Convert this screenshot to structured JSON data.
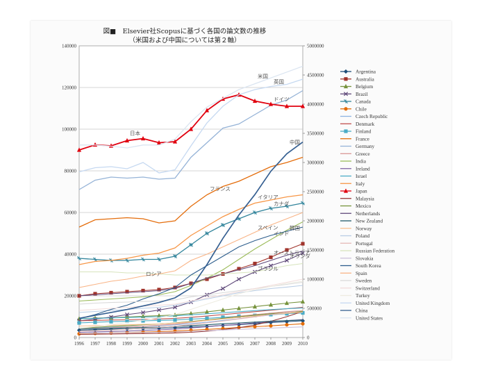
{
  "chart_data": {
    "type": "line",
    "title": "図■　Elsevier社Scopusに基づく各国の論文数の推移",
    "subtitle": "（米国および中国については第２軸）",
    "categories": [
      "1996",
      "1997",
      "1998",
      "1999",
      "2000",
      "2001",
      "2002",
      "2003",
      "2004",
      "2005",
      "2006",
      "2007",
      "2008",
      "2009",
      "2010"
    ],
    "y_left": {
      "min": 0,
      "max": 140000,
      "ticks": [
        "0",
        "20000",
        "40000",
        "60000",
        "80000",
        "100000",
        "120000",
        "140000"
      ]
    },
    "y_right": {
      "min": 0,
      "max": 5000000,
      "ticks": [
        "0",
        "500000",
        "1000000",
        "1500000",
        "2000000",
        "2500000",
        "3000000",
        "3500000",
        "4000000",
        "4500000",
        "5000000"
      ]
    },
    "series": [
      {
        "name": "Argentina",
        "color": "#1f4e79",
        "marker": "diamond",
        "axis": "left",
        "values": [
          3500,
          3700,
          3900,
          4100,
          4300,
          4500,
          4700,
          5000,
          5300,
          5800,
          6200,
          6700,
          7200,
          7600,
          8000
        ]
      },
      {
        "name": "Australia",
        "color": "#a0342c",
        "marker": "square",
        "axis": "left",
        "values": [
          20000,
          21000,
          21500,
          22000,
          22500,
          23000,
          24000,
          26000,
          28000,
          30500,
          33000,
          35500,
          38500,
          42000,
          45000
        ]
      },
      {
        "name": "Belgium",
        "color": "#76923c",
        "marker": "triangle",
        "axis": "left",
        "values": [
          9000,
          9300,
          9500,
          9800,
          10200,
          10500,
          10800,
          11500,
          12300,
          13200,
          14000,
          14800,
          15700,
          16500,
          17200
        ]
      },
      {
        "name": "Brazil",
        "color": "#5f497a",
        "marker": "x",
        "axis": "left",
        "values": [
          8000,
          8800,
          9800,
          11000,
          12000,
          13200,
          14500,
          17000,
          20500,
          23500,
          28000,
          31500,
          34500,
          37000,
          40500
        ]
      },
      {
        "name": "Canada",
        "color": "#31849b",
        "marker": "star",
        "axis": "left",
        "values": [
          38000,
          37500,
          37000,
          37000,
          37500,
          37500,
          39000,
          44500,
          50000,
          54000,
          57000,
          60000,
          62000,
          63000,
          64500
        ]
      },
      {
        "name": "Chile",
        "color": "#e36c09",
        "marker": "circle",
        "axis": "left",
        "values": [
          1800,
          2000,
          2200,
          2400,
          2600,
          2800,
          3100,
          3500,
          3900,
          4300,
          4800,
          5200,
          5600,
          6100,
          6600
        ]
      },
      {
        "name": "Czech Republic",
        "color": "#8db3e2",
        "marker": "none",
        "axis": "left",
        "values": [
          4500,
          4700,
          4900,
          5100,
          5400,
          5700,
          6100,
          6700,
          7300,
          8200,
          9000,
          10000,
          10800,
          11500,
          12200
        ]
      },
      {
        "name": "Denmark",
        "color": "#c0504d",
        "marker": "none",
        "axis": "left",
        "values": [
          8000,
          8200,
          8400,
          8500,
          8700,
          8900,
          9200,
          9700,
          10300,
          11000,
          11700,
          12400,
          13100,
          13800,
          14500
        ]
      },
      {
        "name": "Finland",
        "color": "#4bacc6",
        "marker": "square",
        "axis": "left",
        "values": [
          7000,
          7300,
          7600,
          7800,
          8000,
          8200,
          8400,
          8800,
          9200,
          9700,
          10200,
          10600,
          11000,
          11400,
          11800
        ]
      },
      {
        "name": "France",
        "color": "#e46c0a",
        "marker": "none",
        "axis": "left",
        "values": [
          53000,
          56500,
          57000,
          57500,
          57000,
          55000,
          56000,
          63000,
          68500,
          72500,
          75000,
          78500,
          82000,
          84000,
          86500
        ]
      },
      {
        "name": "Germany",
        "color": "#95b3d7",
        "marker": "none",
        "axis": "left",
        "values": [
          71000,
          75500,
          77000,
          76500,
          77000,
          76000,
          76500,
          86500,
          93500,
          100500,
          102500,
          107000,
          111500,
          114000,
          118500
        ]
      },
      {
        "name": "Greece",
        "color": "#d99694",
        "marker": "none",
        "axis": "left",
        "values": [
          4000,
          4300,
          4600,
          5000,
          5400,
          5900,
          6400,
          7300,
          8200,
          9200,
          10200,
          11000,
          11700,
          12400,
          13000
        ]
      },
      {
        "name": "India",
        "color": "#9bbb59",
        "marker": "none",
        "axis": "left",
        "values": [
          17500,
          18000,
          18500,
          19000,
          19500,
          20500,
          22000,
          25000,
          28500,
          32500,
          37500,
          42500,
          47000,
          51500,
          55500
        ]
      },
      {
        "name": "Ireland",
        "color": "#8064a2",
        "marker": "none",
        "axis": "left",
        "values": [
          2500,
          2700,
          2900,
          3100,
          3400,
          3700,
          4000,
          4600,
          5200,
          5800,
          6400,
          7000,
          7600,
          8100,
          8600
        ]
      },
      {
        "name": "Israel",
        "color": "#4bacc6",
        "marker": "none",
        "axis": "left",
        "values": [
          9000,
          9200,
          9400,
          9600,
          9800,
          10000,
          10400,
          10900,
          11400,
          11900,
          12400,
          12900,
          13400,
          13800,
          14200
        ]
      },
      {
        "name": "Italy",
        "color": "#f79646",
        "marker": "none",
        "axis": "left",
        "values": [
          35000,
          36500,
          37000,
          38000,
          39500,
          40500,
          43000,
          49000,
          53500,
          58000,
          61500,
          64500,
          66000,
          67500,
          68500
        ]
      },
      {
        "name": "Japan",
        "color": "#e0000f",
        "marker": "triangle",
        "axis": "left",
        "values": [
          90000,
          92500,
          92000,
          94500,
          95500,
          93500,
          94000,
          100000,
          109000,
          114500,
          116500,
          113500,
          112000,
          111000,
          111000
        ]
      },
      {
        "name": "Malaysia",
        "color": "#953735",
        "marker": "none",
        "axis": "left",
        "values": [
          1500,
          1600,
          1700,
          1800,
          1900,
          2000,
          2200,
          2500,
          3000,
          3800,
          4700,
          6000,
          7800,
          10000,
          12500
        ]
      },
      {
        "name": "Mexico",
        "color": "#77933c",
        "marker": "none",
        "axis": "left",
        "values": [
          4500,
          4900,
          5300,
          5700,
          6100,
          6500,
          7000,
          7700,
          8400,
          9200,
          10000,
          10700,
          11400,
          12000,
          12600
        ]
      },
      {
        "name": "Netherlands",
        "color": "#604a7b",
        "marker": "none",
        "axis": "left",
        "values": [
          20000,
          20500,
          21000,
          21500,
          22000,
          22500,
          23500,
          26000,
          28500,
          30500,
          32500,
          34500,
          37000,
          39500,
          41500
        ]
      },
      {
        "name": "New Zealand",
        "color": "#215968",
        "marker": "none",
        "axis": "left",
        "values": [
          4000,
          4200,
          4400,
          4600,
          4800,
          5000,
          5300,
          5700,
          6100,
          6600,
          7000,
          7400,
          7800,
          8100,
          8400
        ]
      },
      {
        "name": "Norway",
        "color": "#fac090",
        "marker": "none",
        "axis": "left",
        "values": [
          5500,
          5700,
          5900,
          6100,
          6300,
          6500,
          6900,
          7500,
          8200,
          8900,
          9600,
          10300,
          11000,
          11600,
          12200
        ]
      },
      {
        "name": "Poland",
        "color": "#b9cde5",
        "marker": "none",
        "axis": "left",
        "values": [
          12000,
          12500,
          13000,
          13500,
          14000,
          14500,
          15500,
          17000,
          18500,
          20000,
          21500,
          22500,
          23500,
          24200,
          25000
        ]
      },
      {
        "name": "Portugal",
        "color": "#e6b9b8",
        "marker": "none",
        "axis": "left",
        "values": [
          3000,
          3300,
          3600,
          4000,
          4400,
          4900,
          5400,
          6200,
          7000,
          7900,
          8900,
          9900,
          11000,
          12000,
          13000
        ]
      },
      {
        "name": "Russian Federation",
        "color": "#d7e4bd",
        "marker": "none",
        "axis": "left",
        "values": [
          31500,
          31500,
          31500,
          31000,
          31000,
          30500,
          30000,
          30000,
          30000,
          30500,
          31000,
          31500,
          33000,
          34500,
          35500
        ]
      },
      {
        "name": "Slovakia",
        "color": "#ccc1da",
        "marker": "none",
        "axis": "left",
        "values": [
          2000,
          2100,
          2200,
          2300,
          2400,
          2500,
          2700,
          3000,
          3300,
          3600,
          3900,
          4200,
          4500,
          4800,
          5100
        ]
      },
      {
        "name": "South Korea",
        "color": "#2c5d8c",
        "marker": "none",
        "axis": "left",
        "values": [
          9000,
          11000,
          13500,
          15500,
          18500,
          21000,
          24000,
          30000,
          34500,
          39000,
          43500,
          46500,
          49000,
          51000,
          53000
        ]
      },
      {
        "name": "Spain",
        "color": "#f9b486",
        "marker": "none",
        "axis": "left",
        "values": [
          24000,
          25500,
          27000,
          28000,
          29500,
          30500,
          32000,
          37000,
          40000,
          43500,
          47000,
          50500,
          54000,
          57000,
          60000
        ]
      },
      {
        "name": "Sweden",
        "color": "#d9d9d9",
        "marker": "none",
        "axis": "left",
        "values": [
          16000,
          16500,
          16800,
          17000,
          17300,
          17500,
          18000,
          19500,
          20500,
          21500,
          22500,
          23500,
          24500,
          25500,
          26500
        ]
      },
      {
        "name": "Switzerland",
        "color": "#f2dcdb",
        "marker": "none",
        "axis": "left",
        "values": [
          13000,
          13500,
          14000,
          14500,
          15000,
          15500,
          16000,
          17500,
          19000,
          20500,
          22000,
          23500,
          25000,
          26500,
          28000
        ]
      },
      {
        "name": "Turkey",
        "color": "#eeece1",
        "marker": "none",
        "axis": "left",
        "values": [
          4500,
          5300,
          6200,
          7200,
          8200,
          9500,
          11000,
          13500,
          16000,
          18500,
          21000,
          23000,
          24500,
          26000,
          27000
        ]
      },
      {
        "name": "United Kingdom",
        "color": "#c6d9f1",
        "marker": "none",
        "axis": "left",
        "values": [
          79500,
          81500,
          82000,
          81000,
          84000,
          79000,
          80500,
          92000,
          103000,
          111000,
          116500,
          119000,
          120500,
          121500,
          124000
        ]
      },
      {
        "name": "China",
        "color": "#366092",
        "marker": "none",
        "axis": "right",
        "values": [
          330000,
          380000,
          430000,
          480000,
          540000,
          600000,
          680000,
          850000,
          1250000,
          1700000,
          2100000,
          2450000,
          2850000,
          3150000,
          3350000
        ]
      },
      {
        "name": "United States",
        "color": "#dbe5f1",
        "marker": "none",
        "axis": "right",
        "values": [
          3300000,
          3300000,
          3280000,
          3250000,
          3300000,
          3300000,
          3400000,
          3700000,
          3950000,
          4100000,
          4250000,
          4350000,
          4450000,
          4550000,
          4650000
        ]
      }
    ],
    "annotations": [
      {
        "label": "米国",
        "series": "United States"
      },
      {
        "label": "英国",
        "series": "United Kingdom"
      },
      {
        "label": "ドイツ",
        "series": "Germany"
      },
      {
        "label": "日本",
        "series": "Japan"
      },
      {
        "label": "中国",
        "series": "China"
      },
      {
        "label": "フランス",
        "series": "France"
      },
      {
        "label": "カナダ",
        "series": "Canada"
      },
      {
        "label": "イタリア",
        "series": "Italy"
      },
      {
        "label": "インド",
        "series": "India"
      },
      {
        "label": "スペイン",
        "series": "Spain"
      },
      {
        "label": "韓国",
        "series": "South Korea"
      },
      {
        "label": "ロシア",
        "series": "Russian Federation"
      },
      {
        "label": "オーストラリア",
        "series": "Australia"
      },
      {
        "label": "ブラジル",
        "series": "Brazil"
      },
      {
        "label": "オランダ",
        "series": "Netherlands"
      }
    ]
  }
}
